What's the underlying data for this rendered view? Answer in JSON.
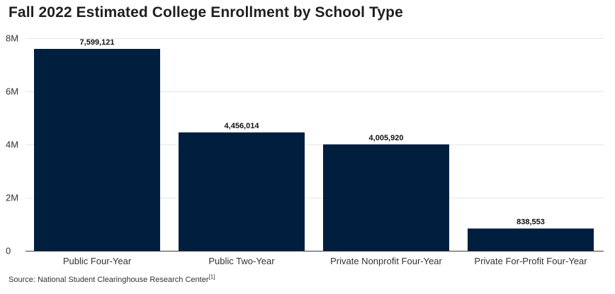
{
  "chart_data": {
    "type": "bar",
    "title": "Fall 2022 Estimated College Enrollment by School Type",
    "xlabel": "",
    "ylabel": "",
    "categories": [
      "Public Four-Year",
      "Public Two-Year",
      "Private Nonprofit Four-Year",
      "Private For-Profit Four-Year"
    ],
    "values": [
      7599121,
      4456014,
      4005920,
      838553
    ],
    "data_labels": [
      "7,599,121",
      "4,456,014",
      "4,005,920",
      "838,553"
    ],
    "ylim": [
      0,
      8000000
    ],
    "y_ticks": [
      0,
      2000000,
      4000000,
      6000000,
      8000000
    ],
    "y_tick_labels": [
      "0",
      "2M",
      "4M",
      "6M",
      "8M"
    ],
    "grid": true,
    "legend": "none",
    "bar_color": "#001f3f"
  },
  "source": {
    "text": "Source: National Student Clearinghouse Research Center",
    "ref": "[1]"
  }
}
